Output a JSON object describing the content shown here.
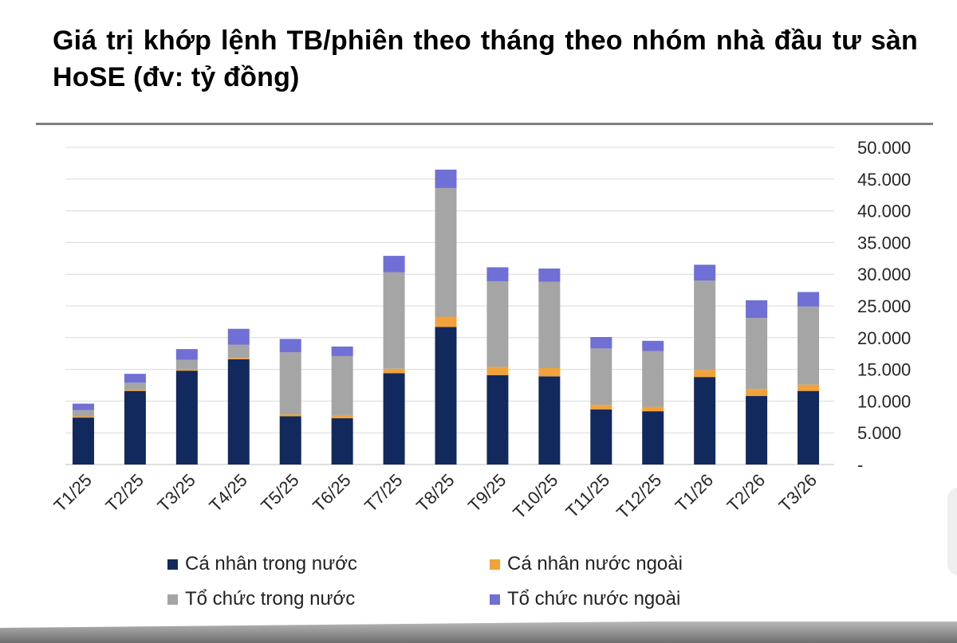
{
  "title": "Giá trị khớp lệnh TB/phiên theo tháng theo nhóm nhà đầu tư sàn HoSE (đv: tỷ đồng)",
  "chart_data": {
    "type": "bar",
    "stacked": true,
    "categories": [
      "T1/25",
      "T2/25",
      "T3/25",
      "T4/25",
      "T5/25",
      "T6/25",
      "T7/25",
      "T8/25",
      "T9/25",
      "T10/25",
      "T11/25",
      "T12/25",
      "T1/26",
      "T2/26",
      "T3/26"
    ],
    "series": [
      {
        "name": "Cá nhân trong nước",
        "color": "#12295e",
        "values": [
          7400,
          11600,
          14800,
          16600,
          7600,
          7300,
          14400,
          21700,
          14100,
          13900,
          8700,
          8400,
          13800,
          10800,
          11600
        ]
      },
      {
        "name": "Cá nhân nước ngoài",
        "color": "#f2a23a",
        "values": [
          200,
          200,
          200,
          200,
          300,
          500,
          700,
          1600,
          1300,
          1300,
          700,
          700,
          1100,
          1100,
          1000
        ]
      },
      {
        "name": "Tổ chức trong nước",
        "color": "#a5a5a5",
        "values": [
          1000,
          1100,
          1500,
          2100,
          9800,
          9300,
          15200,
          20300,
          13500,
          13600,
          8900,
          8800,
          14100,
          11200,
          12300
        ]
      },
      {
        "name": "Tổ chức nước ngoài",
        "color": "#6f6fd6",
        "values": [
          1000,
          1400,
          1700,
          2500,
          2100,
          1500,
          2600,
          2900,
          2200,
          2100,
          1800,
          1600,
          2500,
          2800,
          2300
        ]
      }
    ],
    "ylim": [
      0,
      50000
    ],
    "yticks": [
      0,
      5000,
      10000,
      15000,
      20000,
      25000,
      30000,
      35000,
      40000,
      45000,
      50000
    ],
    "ytick_labels": [
      "-",
      "5.000",
      "10.000",
      "15.000",
      "20.000",
      "25.000",
      "30.000",
      "35.000",
      "40.000",
      "45.000",
      "50.000"
    ],
    "y_axis_side": "right",
    "grid": true,
    "legend_position": "bottom"
  }
}
